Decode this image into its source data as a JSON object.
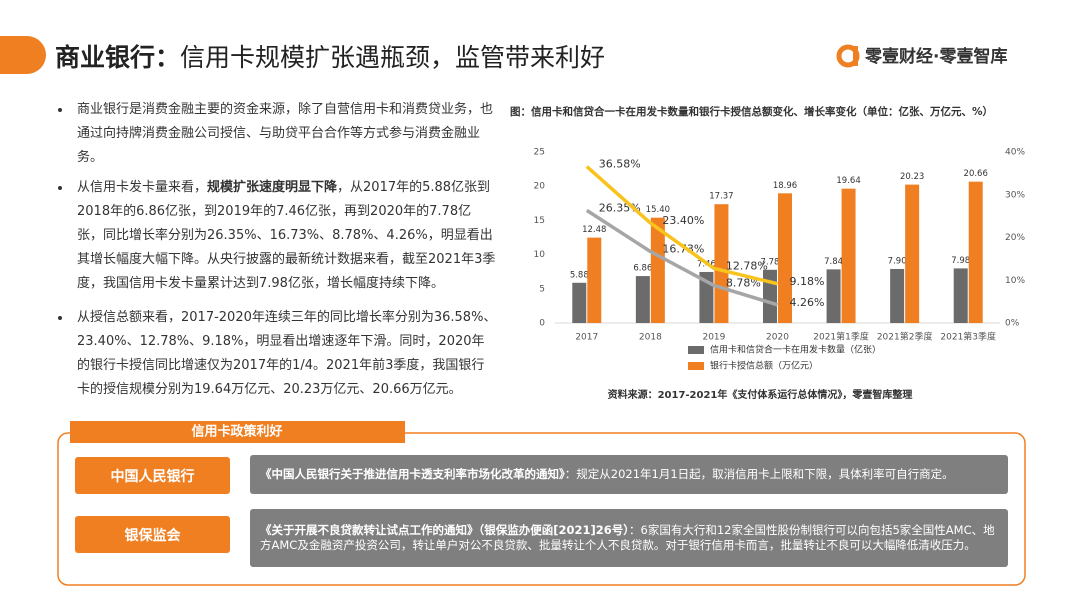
{
  "header": {
    "title_bold": "商业银行：",
    "title_rest": "信用卡规模扩张遇瓶颈，监管带来利好",
    "logo": "零壹财经·零壹智库"
  },
  "bullets": [
    [
      "商业银行是消费金融主要的资金来源，除了自营信用卡和消费贷业务，也通过向持牌消费金融公司授信、与助贷平台合作等方式参与消费金融业务。"
    ],
    [
      "从信用卡发卡量来看，",
      "规模扩张速度明显下降",
      "，从2017年的5.88亿张到2018年的6.86亿张，到2019年的7.46亿张，再到2020年的7.78亿张，同比增长率分别为26.35%、16.73%、8.78%、4.26%，明显看出其增长幅度大幅下降。从央行披露的最新统计数据来看，截至2021年3季度，我国信用卡发卡量累计达到7.98亿张，增长幅度持续下降。"
    ],
    [
      "从授信总额来看，2017-2020年连续三年的同比增长率分别为36.58%、23.40%、12.78%、9.18%，明显看出增速逐年下滑。同时，2020年的银行卡授信同比增速仅为2017年的1/4。2021年前3季度，我国银行卡的授信规模分别为19.64万亿元、20.23万亿元、20.66万亿元。"
    ]
  ],
  "chart_data": {
    "type": "bar",
    "title": "图：信用卡和信贷合一卡在用发卡数量和银行卡授信总额变化、增长率变化（单位：亿张、万亿元、%）",
    "source": "资料来源：2017-2021年《支付体系运行总体情况》，零壹智库整理",
    "categories": [
      "2017",
      "2018",
      "2019",
      "2020",
      "2021第1季度",
      "2021第2季度",
      "2021第3季度"
    ],
    "ylim": [
      0,
      25
    ],
    "yticks": [
      0,
      5,
      10,
      15,
      20,
      25
    ],
    "y2lim": [
      0,
      40
    ],
    "y2ticks": [
      {
        "value": 0,
        "label": "0%"
      },
      {
        "value": 10,
        "label": "10%"
      },
      {
        "value": 20,
        "label": "20%"
      },
      {
        "value": 30,
        "label": "30%"
      },
      {
        "value": 40,
        "label": "40%"
      }
    ],
    "series": [
      {
        "name": "信用卡和信贷合一卡在用发卡数量（亿张）",
        "color": "#6b6b6b",
        "values": [
          5.88,
          6.86,
          7.46,
          7.78,
          7.84,
          7.9,
          7.98
        ],
        "value_labels": [
          "5.88",
          "6.86",
          "7.46",
          "7.78",
          "7.84",
          "7.90",
          "7.98"
        ]
      },
      {
        "name": "银行卡授信总额（万亿元）",
        "color": "#f07f22",
        "values": [
          12.48,
          15.4,
          17.37,
          18.96,
          19.64,
          20.23,
          20.66
        ],
        "value_labels": [
          "12.48",
          "15.40",
          "17.37",
          "18.96",
          "19.64",
          "20.23",
          "20.66"
        ]
      },
      {
        "type": "line",
        "axis": "y2",
        "color": "#a6a6a6",
        "values": [
          26.35,
          16.73,
          8.78,
          4.26,
          null,
          null,
          null
        ],
        "value_labels": [
          "26.35%",
          "16.73%",
          "8.78%",
          "4.26%",
          null,
          null,
          null
        ]
      },
      {
        "type": "line",
        "axis": "y2",
        "color": "#f7c31c",
        "values": [
          36.58,
          23.4,
          12.78,
          9.18,
          null,
          null,
          null
        ],
        "value_labels": [
          "36.58%",
          "23.40%",
          "12.78%",
          "9.18%",
          null,
          null,
          null
        ]
      }
    ]
  },
  "policy": {
    "heading": "信用卡政策利好",
    "items": [
      {
        "org": "中国人民银行",
        "title": "《中国人民银行关于推进信用卡透支利率市场化改革的通知》",
        "body": "：规定从2021年1月1日起，取消信用卡上限和下限，具体利率可自行商定。"
      },
      {
        "org": "银保监会",
        "title": "《关于开展不良贷款转让试点工作的通知》（银保监办便函[2021]26号）",
        "body": "：6家国有大行和12家全国性股份制银行可以向包括5家全国性AMC、地方AMC及金融资产投资公司，转让单户对公不良贷款、批量转让个人不良贷款。对于银行信用卡而言，批量转让不良可以大幅降低清收压力。"
      }
    ]
  }
}
